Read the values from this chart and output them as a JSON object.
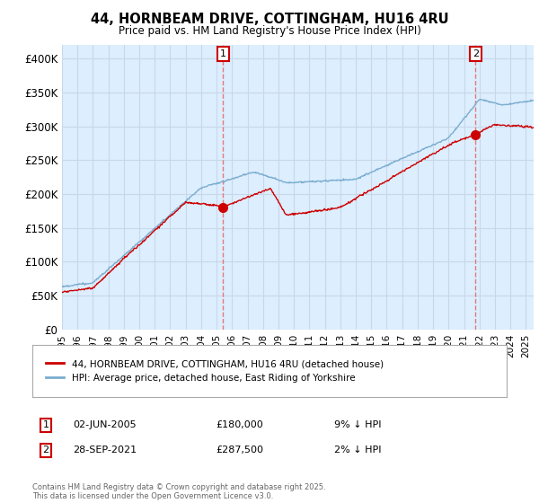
{
  "title": "44, HORNBEAM DRIVE, COTTINGHAM, HU16 4RU",
  "subtitle": "Price paid vs. HM Land Registry's House Price Index (HPI)",
  "ylabel_ticks": [
    "£0",
    "£50K",
    "£100K",
    "£150K",
    "£200K",
    "£250K",
    "£300K",
    "£350K",
    "£400K"
  ],
  "ytick_values": [
    0,
    50000,
    100000,
    150000,
    200000,
    250000,
    300000,
    350000,
    400000
  ],
  "ylim": [
    0,
    420000
  ],
  "xlim_start": 1995.0,
  "xlim_end": 2025.5,
  "sale1_date": 2005.42,
  "sale1_price": 180000,
  "sale2_date": 2021.74,
  "sale2_price": 287500,
  "red_color": "#cc0000",
  "blue_color": "#7aadcf",
  "marker_color": "#cc0000",
  "vline_color": "#e87878",
  "grid_color": "#c8d8e8",
  "plot_bg_color": "#ddeeff",
  "bg_color": "#ffffff",
  "legend_label_red": "44, HORNBEAM DRIVE, COTTINGHAM, HU16 4RU (detached house)",
  "legend_label_blue": "HPI: Average price, detached house, East Riding of Yorkshire",
  "annotation1": "02-JUN-2005",
  "annotation1_price": "£180,000",
  "annotation1_pct": "9% ↓ HPI",
  "annotation2": "28-SEP-2021",
  "annotation2_price": "£287,500",
  "annotation2_pct": "2% ↓ HPI",
  "footer": "Contains HM Land Registry data © Crown copyright and database right 2025.\nThis data is licensed under the Open Government Licence v3.0.",
  "xtick_years": [
    1995,
    1996,
    1997,
    1998,
    1999,
    2000,
    2001,
    2002,
    2003,
    2004,
    2005,
    2006,
    2007,
    2008,
    2009,
    2010,
    2011,
    2012,
    2013,
    2014,
    2015,
    2016,
    2017,
    2018,
    2019,
    2020,
    2021,
    2022,
    2023,
    2024,
    2025
  ]
}
